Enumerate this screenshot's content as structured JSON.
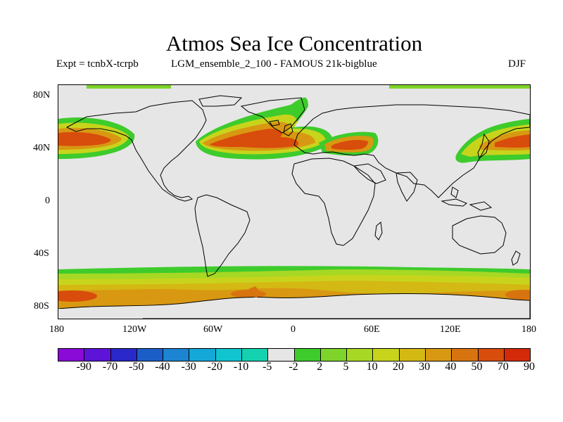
{
  "title": "Atmos Sea Ice Concentration",
  "subtitle_left": "Expt = tcnbX-tcrpb",
  "subtitle_center": "LGM_ensemble_2_100 - FAMOUS 21k-bigblue",
  "subtitle_right": "DJF",
  "lat_labels": [
    "80N",
    "40N",
    "0",
    "40S",
    "80S"
  ],
  "lon_labels": [
    "180",
    "120W",
    "60W",
    "0",
    "60E",
    "120E",
    "180"
  ],
  "colorbar": {
    "labels": [
      "-90",
      "-70",
      "-50",
      "-40",
      "-30",
      "-20",
      "-10",
      "-5",
      "-2",
      "2",
      "5",
      "10",
      "20",
      "30",
      "40",
      "50",
      "70",
      "90"
    ],
    "colors": [
      "#8a0ad8",
      "#5d14d8",
      "#2a28c8",
      "#1c5ec8",
      "#1c84d0",
      "#14a8d8",
      "#10c4d0",
      "#14d2b0",
      "#e6e6e6",
      "#3ecb2c",
      "#7ed42a",
      "#a6d824",
      "#c8d41c",
      "#d4b814",
      "#d89812",
      "#d87410",
      "#d84c0c",
      "#d42a0a"
    ]
  }
}
